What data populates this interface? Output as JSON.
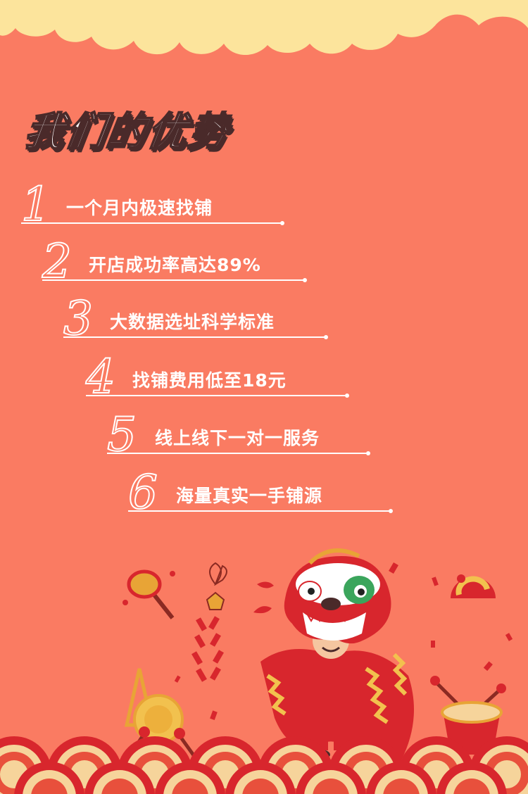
{
  "title": "我们的优势",
  "advantages": [
    {
      "num": "1",
      "text": "一个月内极速找铺"
    },
    {
      "num": "2",
      "text": "开店成功率高达89%"
    },
    {
      "num": "3",
      "text": "大数据选址科学标准"
    },
    {
      "num": "4",
      "text": "找铺费用低至18元"
    },
    {
      "num": "5",
      "text": "线上线下一对一服务"
    },
    {
      "num": "6",
      "text": "海量真实一手铺源"
    }
  ],
  "colors": {
    "background": "#FA7B62",
    "cloud": "#FCE49C",
    "title_shadow": "#4a2a2a",
    "text": "#ffffff"
  },
  "illustration": {
    "main": "lion-dance-icon",
    "props": [
      "drum-icon",
      "firecracker-icon",
      "gong-icon",
      "hat-icon",
      "wave-pattern-icon"
    ]
  }
}
